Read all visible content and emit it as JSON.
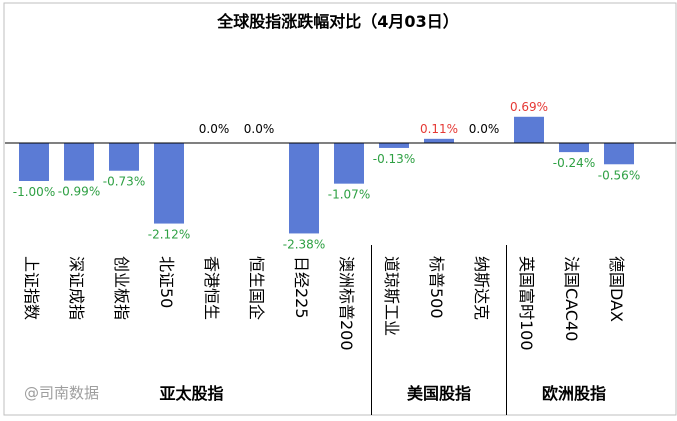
{
  "chart_data": {
    "type": "bar",
    "title": "全球股指涨跌幅对比（4月03日）",
    "categories": [
      "上证指数",
      "深证成指",
      "创业板指",
      "北证50",
      "香港恒生",
      "恒生国企",
      "日经225",
      "澳洲标普200",
      "道琼斯工业",
      "标普500",
      "纳斯达克",
      "英国富时100",
      "法国CAC40",
      "德国DAX"
    ],
    "values": [
      -1.0,
      -0.99,
      -0.73,
      -2.12,
      0.0,
      0.0,
      -2.38,
      -1.07,
      -0.13,
      0.11,
      0.0,
      0.69,
      -0.24,
      -0.56
    ],
    "value_labels": [
      "-1.00%",
      "-0.99%",
      "-0.73%",
      "-2.12%",
      "0.0%",
      "0.0%",
      "-2.38%",
      "-1.07%",
      "-0.13%",
      "0.11%",
      "0.0%",
      "0.69%",
      "-0.24%",
      "-0.56%"
    ],
    "groups": [
      {
        "label": "亚太股指",
        "count": 8
      },
      {
        "label": "美国股指",
        "count": 3
      },
      {
        "label": "欧洲股指",
        "count": 3
      }
    ],
    "xlabel": "",
    "ylabel": "",
    "grid": false,
    "legend": "none"
  },
  "watermark": "@司南数据",
  "colors": {
    "bar": "#5b7bd5",
    "positive_label": "#e53935",
    "negative_label": "#2ea043",
    "zero_label": "#000000"
  }
}
